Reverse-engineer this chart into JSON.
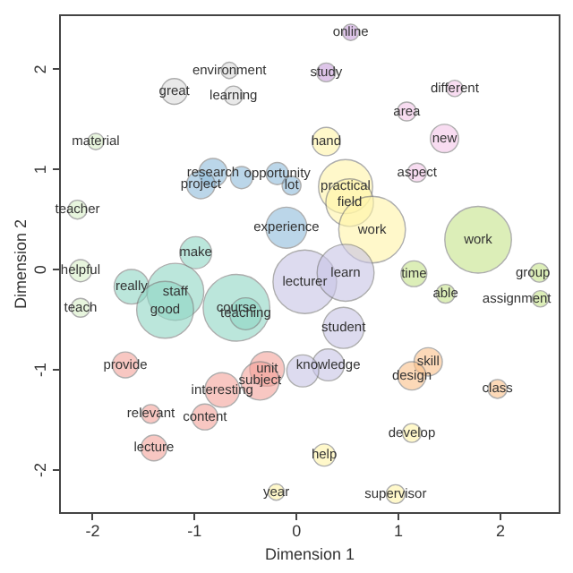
{
  "chart_data": {
    "type": "bubble",
    "xlabel": "Dimension 1",
    "ylabel": "Dimension 2",
    "xlim": [
      -2.32,
      2.58
    ],
    "ylim": [
      -2.43,
      2.54
    ],
    "xticks": [
      -2,
      -1,
      0,
      1,
      2
    ],
    "yticks": [
      -2,
      -1,
      0,
      1,
      2
    ],
    "marker": "circle",
    "series": [
      {
        "color": "#dcdcdc",
        "x": [
          -0.65,
          -1.19,
          -0.61
        ],
        "values": [
          1.98,
          1.77,
          1.73
        ],
        "sizes": [
          0.06,
          0.15,
          0.08
        ],
        "value_labels": [
          "environment",
          "great",
          "learning"
        ]
      },
      {
        "color": "#c9a0dc",
        "x": [
          0.54,
          0.3
        ],
        "values": [
          2.36,
          1.96
        ],
        "sizes": [
          0.06,
          0.08
        ],
        "value_labels": [
          "online",
          "study"
        ]
      },
      {
        "color": "#f4c6e8",
        "x": [
          1.56,
          1.09,
          1.46,
          1.19
        ],
        "values": [
          1.8,
          1.57,
          1.3,
          0.96
        ],
        "sizes": [
          0.06,
          0.08,
          0.18,
          0.08
        ],
        "value_labels": [
          "different",
          "area",
          "new",
          "aspect"
        ]
      },
      {
        "color": "#8fbcdb",
        "x": [
          -0.81,
          -0.93,
          -0.53,
          -0.18,
          -0.04,
          -0.09
        ],
        "values": [
          0.96,
          0.84,
          0.91,
          0.95,
          0.83,
          0.41
        ],
        "sizes": [
          0.18,
          0.18,
          0.11,
          0.11,
          0.08,
          0.38
        ],
        "value_labels": [
          "research",
          "project",
          null,
          "opportunity",
          "lot",
          "experience"
        ]
      },
      {
        "color": "#fff5a8",
        "x": [
          0.3,
          0.49,
          0.53,
          0.75,
          0.28,
          -0.19,
          1.14,
          0.98
        ],
        "values": [
          1.27,
          0.82,
          0.66,
          0.39,
          -1.86,
          -2.23,
          -1.64,
          -2.25
        ],
        "sizes": [
          0.18,
          0.66,
          0.51,
          1.0,
          0.11,
          0.06,
          0.08,
          0.08
        ],
        "value_labels": [
          "hand",
          "practical",
          "field",
          "work",
          "help",
          "year",
          "develop",
          "supervisor"
        ]
      },
      {
        "color": "#c5e38a",
        "x": [
          1.79,
          1.16,
          2.39,
          1.47,
          2.4
        ],
        "values": [
          0.29,
          -0.05,
          -0.04,
          -0.25,
          -0.3
        ],
        "sizes": [
          1.0,
          0.15,
          0.08,
          0.08,
          0.06
        ],
        "value_labels": [
          "work",
          "time",
          "group",
          "able",
          "assignment"
        ]
      },
      {
        "color": "#d8efc8",
        "x": [
          -1.96,
          -2.14,
          -2.11,
          -2.11
        ],
        "values": [
          1.27,
          0.59,
          -0.02,
          -0.39
        ],
        "sizes": [
          0.06,
          0.08,
          0.11,
          0.08
        ],
        "value_labels": [
          "material",
          "teacher",
          "helpful",
          "teach"
        ]
      },
      {
        "color": "#8fd6c4",
        "x": [
          -0.98,
          -1.61,
          -1.18,
          -1.28,
          -0.58,
          -0.49
        ],
        "values": [
          0.16,
          -0.18,
          -0.23,
          -0.41,
          -0.39,
          -0.45
        ],
        "sizes": [
          0.23,
          0.27,
          0.73,
          0.73,
          1.0,
          0.23
        ],
        "value_labels": [
          "make",
          "really",
          "staff",
          "good",
          "course",
          "teaching"
        ]
      },
      {
        "color": "#c8c4e6",
        "x": [
          0.09,
          0.49,
          0.47,
          0.32,
          0.07
        ],
        "values": [
          -0.13,
          -0.04,
          -0.59,
          -0.96,
          -1.02
        ],
        "sizes": [
          0.91,
          0.73,
          0.38,
          0.23,
          0.23
        ],
        "value_labels": [
          "lecturer",
          "learn",
          "student",
          "knowledge",
          null
        ]
      },
      {
        "color": "#f4a29a",
        "x": [
          -1.67,
          -0.72,
          -0.28,
          -0.35,
          -1.42,
          -0.89,
          -1.39
        ],
        "values": [
          -0.96,
          -1.21,
          -1.0,
          -1.12,
          -1.45,
          -1.48,
          -1.79
        ],
        "sizes": [
          0.15,
          0.27,
          0.27,
          0.33,
          0.08,
          0.15,
          0.15
        ],
        "value_labels": [
          "provide",
          "interesting",
          "unit",
          "subject",
          "relevant",
          "content",
          "lecture"
        ]
      },
      {
        "color": "#fbc18a",
        "x": [
          1.3,
          1.14,
          1.98
        ],
        "values": [
          -0.93,
          -1.07,
          -1.2
        ],
        "sizes": [
          0.18,
          0.18,
          0.08
        ],
        "value_labels": [
          "skill",
          "design",
          "class"
        ]
      }
    ]
  }
}
